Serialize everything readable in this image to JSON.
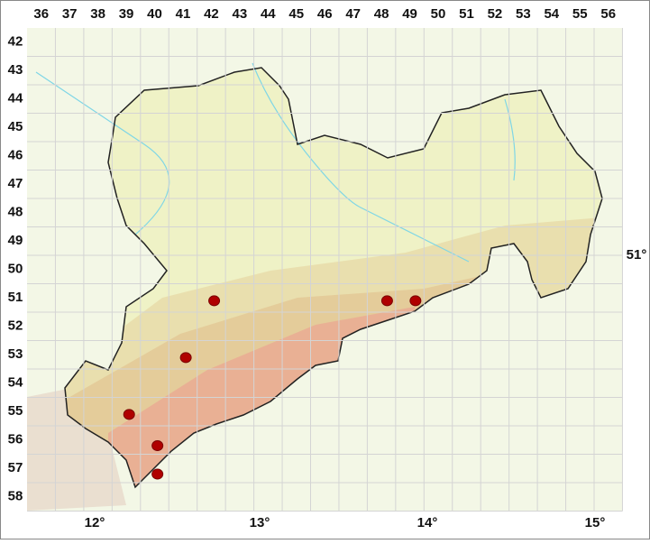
{
  "grid": {
    "columns": [
      36,
      37,
      38,
      39,
      40,
      41,
      42,
      43,
      44,
      45,
      46,
      47,
      48,
      49,
      50,
      51,
      52,
      53,
      54,
      55,
      56
    ],
    "rows": [
      42,
      43,
      44,
      45,
      46,
      47,
      48,
      49,
      50,
      51,
      52,
      53,
      54,
      55,
      56,
      57,
      58
    ]
  },
  "longitudes": [
    "12°",
    "13°",
    "14°",
    "15°"
  ],
  "latitudes": [
    "51°"
  ],
  "records": [
    {
      "col": 42.1,
      "row": 51.1
    },
    {
      "col": 41.1,
      "row": 53.1
    },
    {
      "col": 39.1,
      "row": 55.1
    },
    {
      "col": 40.1,
      "row": 56.2
    },
    {
      "col": 40.1,
      "row": 57.2
    },
    {
      "col": 48.2,
      "row": 51.1
    },
    {
      "col": 49.2,
      "row": 51.1
    }
  ]
}
